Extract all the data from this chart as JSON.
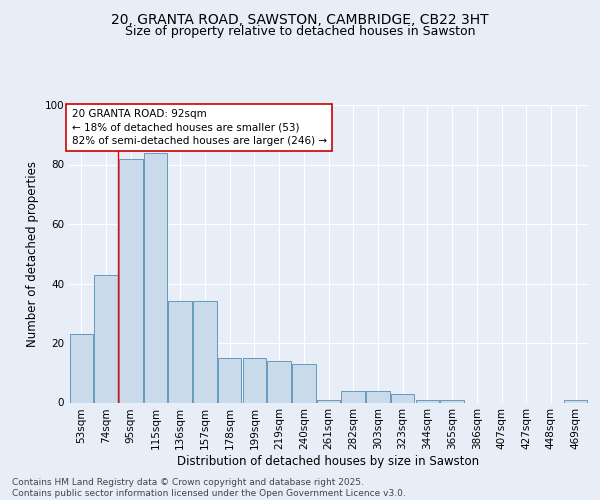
{
  "title_line1": "20, GRANTA ROAD, SAWSTON, CAMBRIDGE, CB22 3HT",
  "title_line2": "Size of property relative to detached houses in Sawston",
  "xlabel": "Distribution of detached houses by size in Sawston",
  "ylabel": "Number of detached properties",
  "categories": [
    "53sqm",
    "74sqm",
    "95sqm",
    "115sqm",
    "136sqm",
    "157sqm",
    "178sqm",
    "199sqm",
    "219sqm",
    "240sqm",
    "261sqm",
    "282sqm",
    "303sqm",
    "323sqm",
    "344sqm",
    "365sqm",
    "386sqm",
    "407sqm",
    "427sqm",
    "448sqm",
    "469sqm"
  ],
  "values": [
    23,
    43,
    82,
    84,
    34,
    34,
    15,
    15,
    14,
    13,
    1,
    4,
    4,
    3,
    1,
    1,
    0,
    0,
    0,
    0,
    1
  ],
  "bar_color": "#c9daea",
  "bar_edge_color": "#6699bb",
  "redline_x": 1.5,
  "ylim": [
    0,
    100
  ],
  "yticks": [
    0,
    20,
    40,
    60,
    80,
    100
  ],
  "bg_color": "#e8eef8",
  "plot_bg_color": "#e8eef8",
  "annotation_line1": "20 GRANTA ROAD: 92sqm",
  "annotation_line2": "← 18% of detached houses are smaller (53)",
  "annotation_line3": "82% of semi-detached houses are larger (246) →",
  "annotation_box_color": "#ffffff",
  "annotation_box_edge_color": "#cc0000",
  "footer_text": "Contains HM Land Registry data © Crown copyright and database right 2025.\nContains public sector information licensed under the Open Government Licence v3.0.",
  "title_fontsize": 10,
  "subtitle_fontsize": 9,
  "axis_label_fontsize": 8.5,
  "tick_fontsize": 7.5,
  "annotation_fontsize": 7.5,
  "footer_fontsize": 6.5,
  "ylabel_fontsize": 8.5
}
